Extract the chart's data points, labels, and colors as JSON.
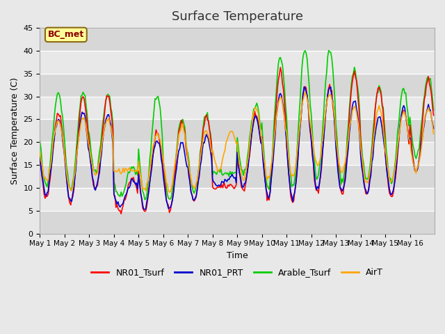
{
  "title": "Surface Temperature",
  "xlabel": "Time",
  "ylabel": "Surface Temperature (C)",
  "ylim": [
    0,
    45
  ],
  "yticks": [
    0,
    5,
    10,
    15,
    20,
    25,
    30,
    35,
    40,
    45
  ],
  "annotation_text": "BC_met",
  "annotation_color": "#8B0000",
  "annotation_bg": "#FFFF99",
  "annotation_edge": "#8B6914",
  "background_color": "#E8E8E8",
  "line_colors": {
    "NR01_Tsurf": "#FF0000",
    "NR01_PRT": "#0000CD",
    "Arable_Tsurf": "#00CC00",
    "AirT": "#FFA500"
  },
  "x_tick_labels": [
    "May 1",
    "May 2",
    "May 3",
    "May 4",
    "May 5",
    "May 6",
    "May 7",
    "May 8",
    "May 9",
    "May 10",
    "May 11",
    "May 12",
    "May 13",
    "May 14",
    "May 15",
    "May 16"
  ],
  "num_days": 16,
  "pts_per_day": 24,
  "daily_mins_NR01": [
    7.5,
    6.5,
    9.5,
    5.0,
    5.0,
    5.0,
    7.0,
    10.0,
    9.5,
    7.5,
    7.0,
    9.0,
    8.5,
    8.5,
    8.0,
    13.5
  ],
  "daily_maxs_NR01": [
    26.5,
    30.0,
    30.0,
    12.0,
    22.0,
    24.5,
    25.5,
    10.5,
    25.5,
    35.5,
    32.0,
    32.0,
    35.0,
    32.0,
    27.0,
    33.5
  ],
  "daily_mins_PRT": [
    8.5,
    7.0,
    10.0,
    6.0,
    5.5,
    5.5,
    7.5,
    10.5,
    10.0,
    8.0,
    7.5,
    9.5,
    9.0,
    9.0,
    8.5,
    14.0
  ],
  "daily_maxs_PRT": [
    25.0,
    26.5,
    26.0,
    11.5,
    20.5,
    20.0,
    21.5,
    12.5,
    25.5,
    30.5,
    32.0,
    32.0,
    29.0,
    25.5,
    27.5,
    27.5
  ],
  "daily_mins_Arable": [
    10.5,
    9.5,
    13.0,
    8.0,
    7.5,
    7.0,
    9.0,
    13.5,
    13.0,
    10.0,
    10.0,
    12.0,
    11.5,
    11.5,
    11.0,
    16.5
  ],
  "daily_maxs_Arable": [
    30.5,
    31.0,
    30.5,
    14.5,
    30.0,
    25.0,
    26.0,
    13.0,
    28.5,
    38.5,
    40.0,
    40.0,
    36.0,
    32.0,
    31.5,
    34.5
  ],
  "daily_mins_AirT": [
    11.5,
    9.5,
    13.0,
    13.5,
    9.5,
    9.0,
    10.0,
    14.0,
    12.0,
    12.0,
    12.5,
    15.0,
    13.5,
    11.0,
    11.0,
    13.5
  ],
  "daily_maxs_AirT": [
    24.5,
    25.5,
    25.0,
    14.0,
    22.0,
    23.5,
    22.5,
    22.5,
    27.5,
    29.5,
    30.5,
    30.5,
    27.5,
    27.5,
    26.5,
    27.5
  ]
}
